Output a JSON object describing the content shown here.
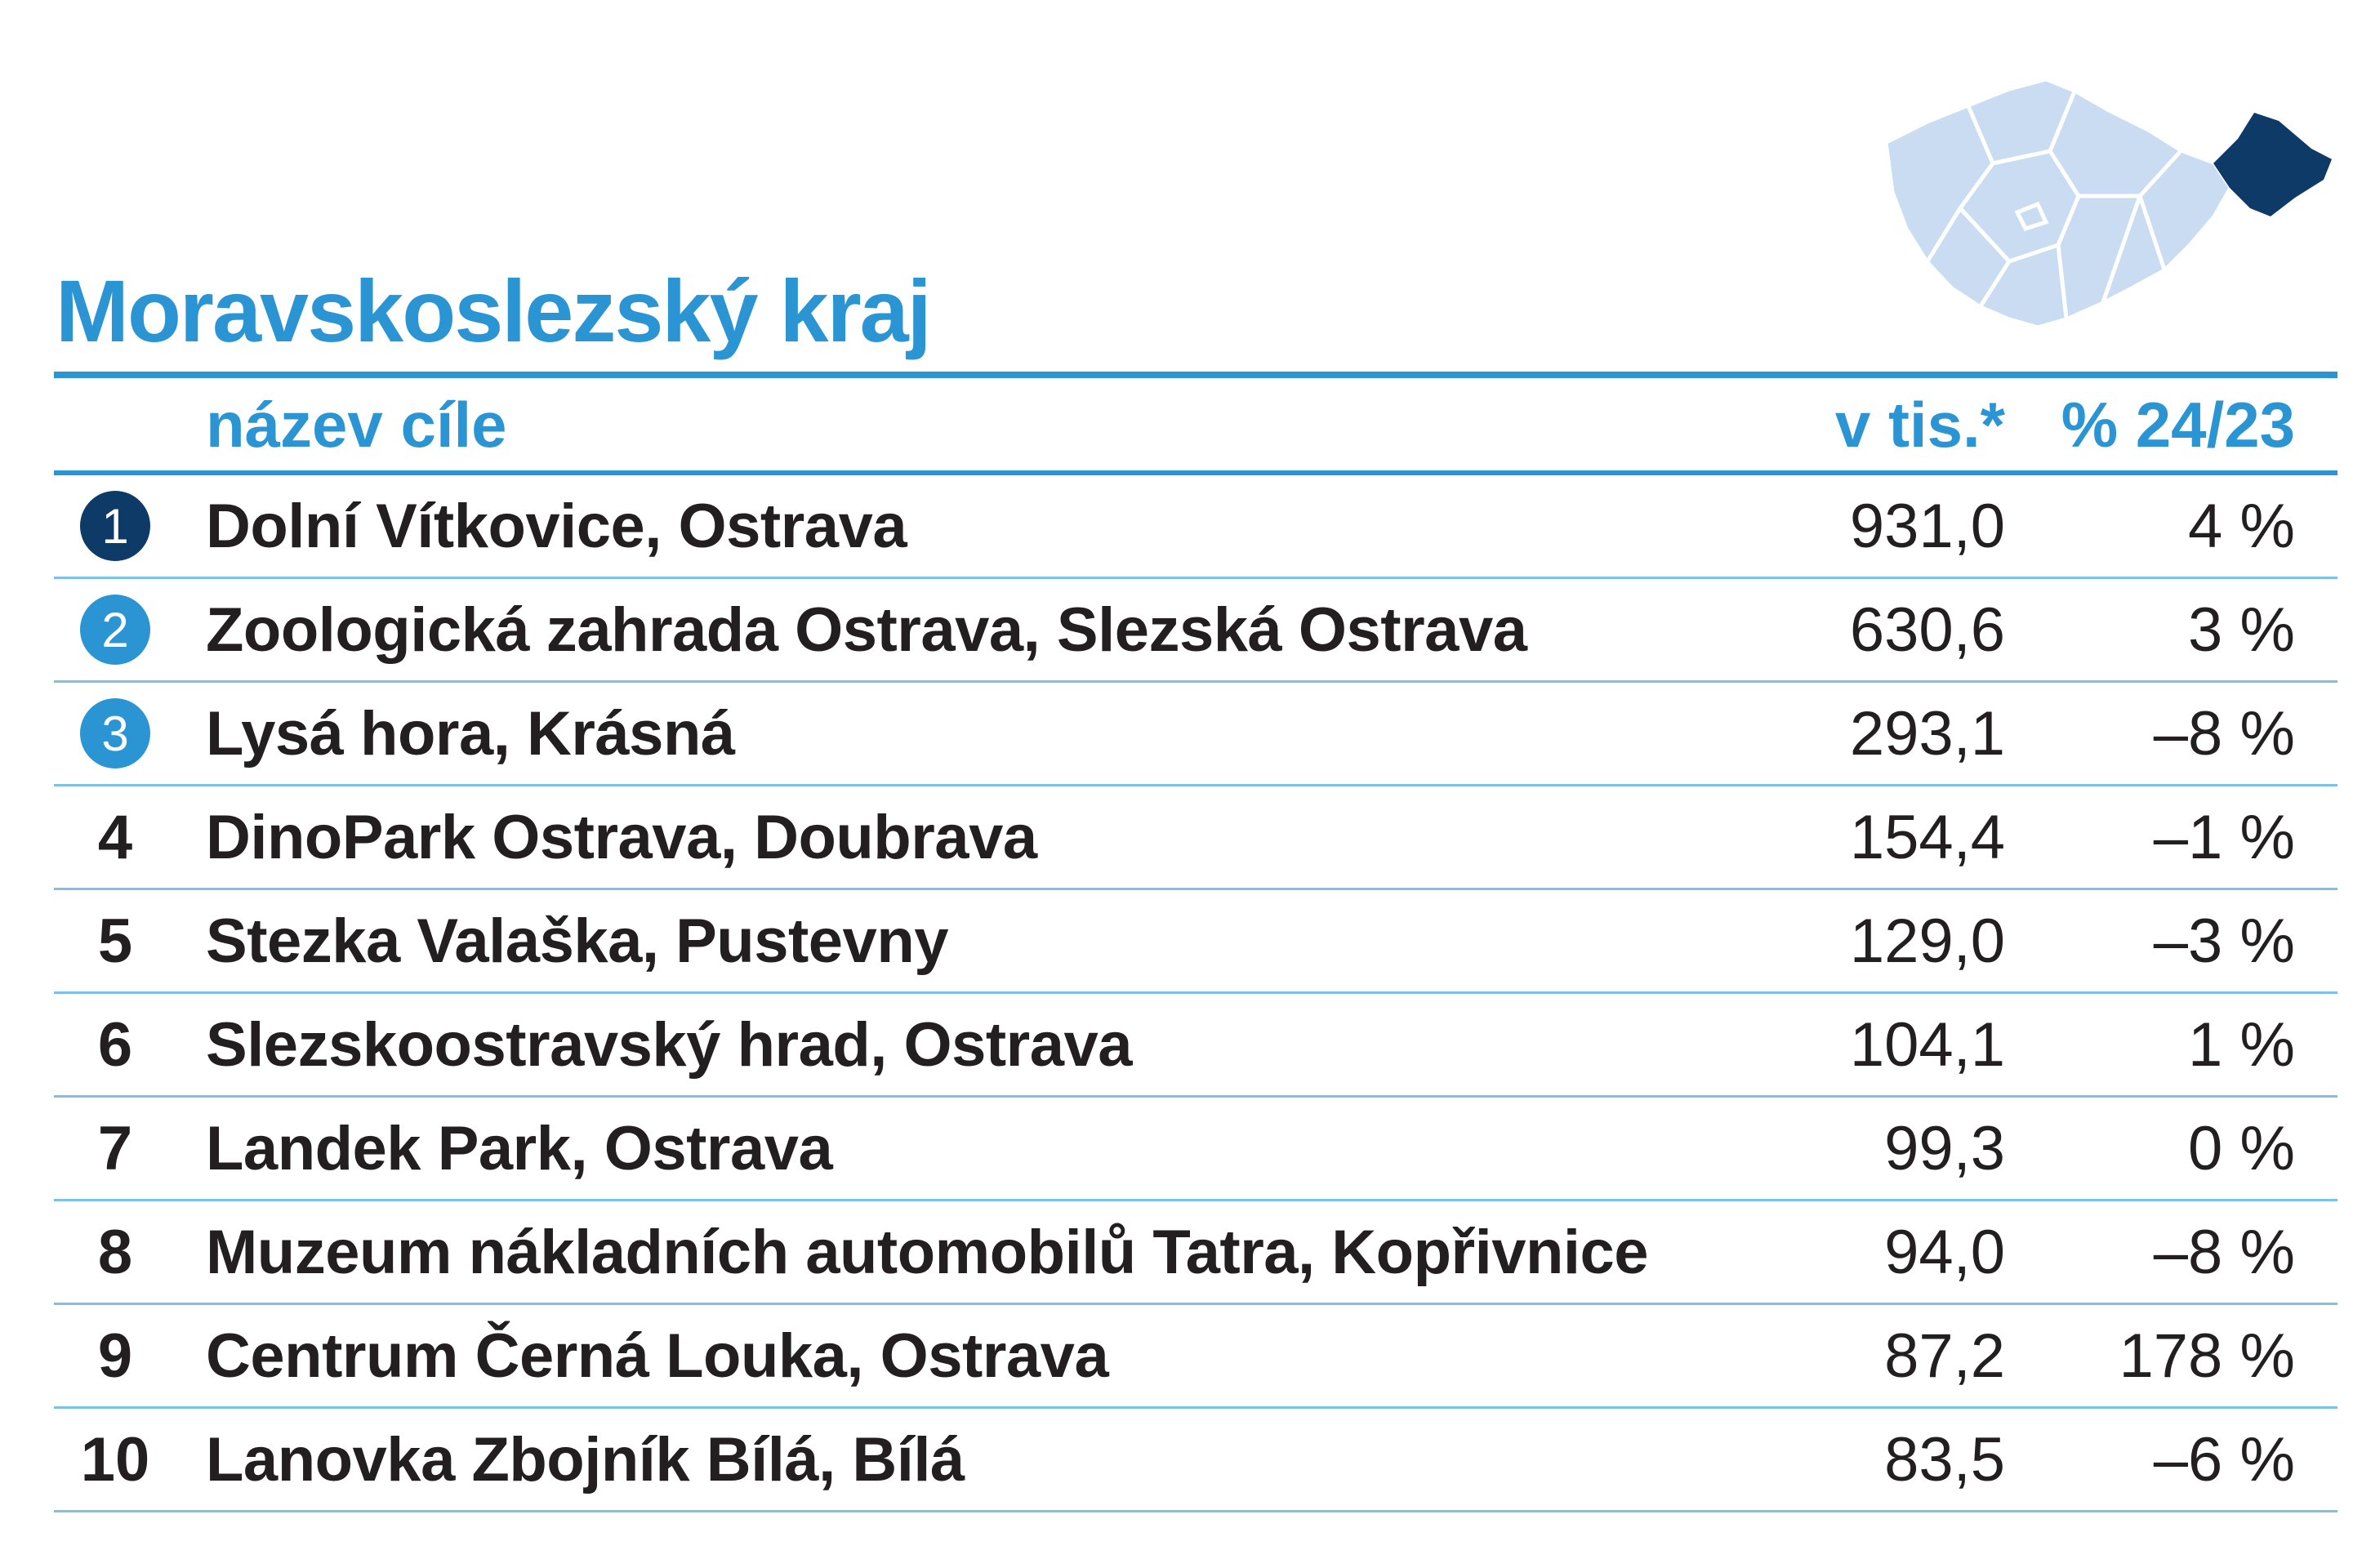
{
  "title": "Moravskoslezský kraj",
  "map": {
    "icon": "czech-regions-map",
    "highlight_color": "#0d3a66",
    "base_color": "#c9dcf2"
  },
  "header": {
    "name": "název cíle",
    "value": "v tis.*",
    "change": "% 24/23"
  },
  "rows": [
    {
      "rank": "1",
      "name": "Dolní Vítkovice, Ostrava",
      "value": "931,0",
      "change": "4 %"
    },
    {
      "rank": "2",
      "name": "Zoologická zahrada Ostrava, Slezská Ostrava",
      "value": "630,6",
      "change": "3 %"
    },
    {
      "rank": "3",
      "name": "Lysá hora, Krásná",
      "value": "293,1",
      "change": "–8 %"
    },
    {
      "rank": "4",
      "name": "DinoPark Ostrava, Doubrava",
      "value": "154,4",
      "change": "–1 %"
    },
    {
      "rank": "5",
      "name": "Stezka Valaška, Pustevny",
      "value": "129,0",
      "change": "–3 %"
    },
    {
      "rank": "6",
      "name": "Slezskoostravský hrad, Ostrava",
      "value": "104,1",
      "change": "1 %"
    },
    {
      "rank": "7",
      "name": "Landek Park, Ostrava",
      "value": "99,3",
      "change": "0 %"
    },
    {
      "rank": "8",
      "name": "Muzeum nákladních automobilů Tatra, Kopřivnice",
      "value": "94,0",
      "change": "–8 %"
    },
    {
      "rank": "9",
      "name": "Centrum Černá Louka, Ostrava",
      "value": "87,2",
      "change": "178 %"
    },
    {
      "rank": "10",
      "name": "Lanovka Zbojník Bílá, Bílá",
      "value": "83,5",
      "change": "–6 %"
    }
  ]
}
